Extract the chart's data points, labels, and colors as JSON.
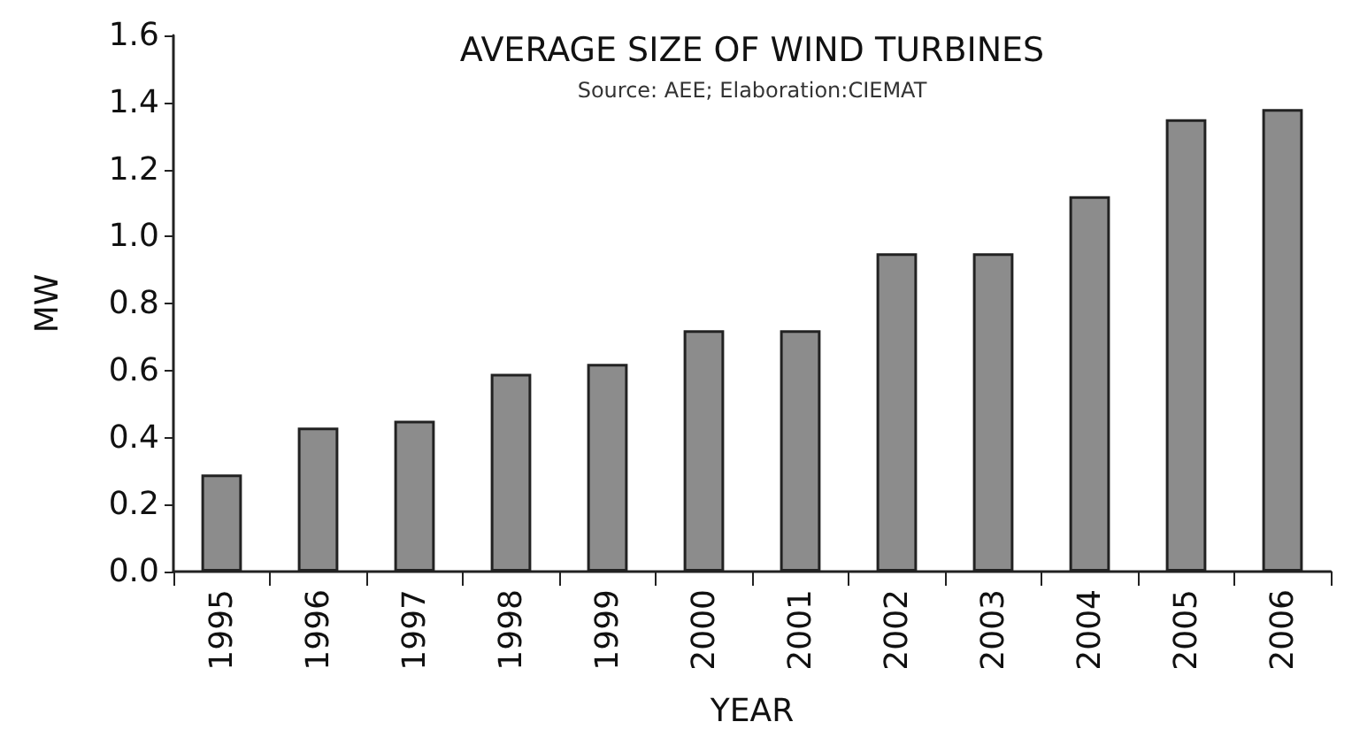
{
  "chart_data": {
    "type": "bar",
    "title": "AVERAGE SIZE OF WIND TURBINES",
    "subtitle": "Source: AEE; Elaboration:CIEMAT",
    "xlabel": "YEAR",
    "ylabel": "MW",
    "categories": [
      "1995",
      "1996",
      "1997",
      "1998",
      "1999",
      "2000",
      "2001",
      "2002",
      "2003",
      "2004",
      "2005",
      "2006"
    ],
    "values": [
      0.29,
      0.43,
      0.45,
      0.59,
      0.62,
      0.72,
      0.72,
      0.95,
      0.95,
      1.12,
      1.35,
      1.38
    ],
    "color": "#8c8c8c",
    "ylim": [
      0,
      1.6
    ],
    "yticks": [
      {
        "value": 0,
        "label": "0.0"
      },
      0.2,
      0.4,
      0.6,
      0.8,
      {
        "value": 1,
        "label": "1.0"
      },
      1.2,
      1.4,
      1.6
    ],
    "grid": false
  }
}
